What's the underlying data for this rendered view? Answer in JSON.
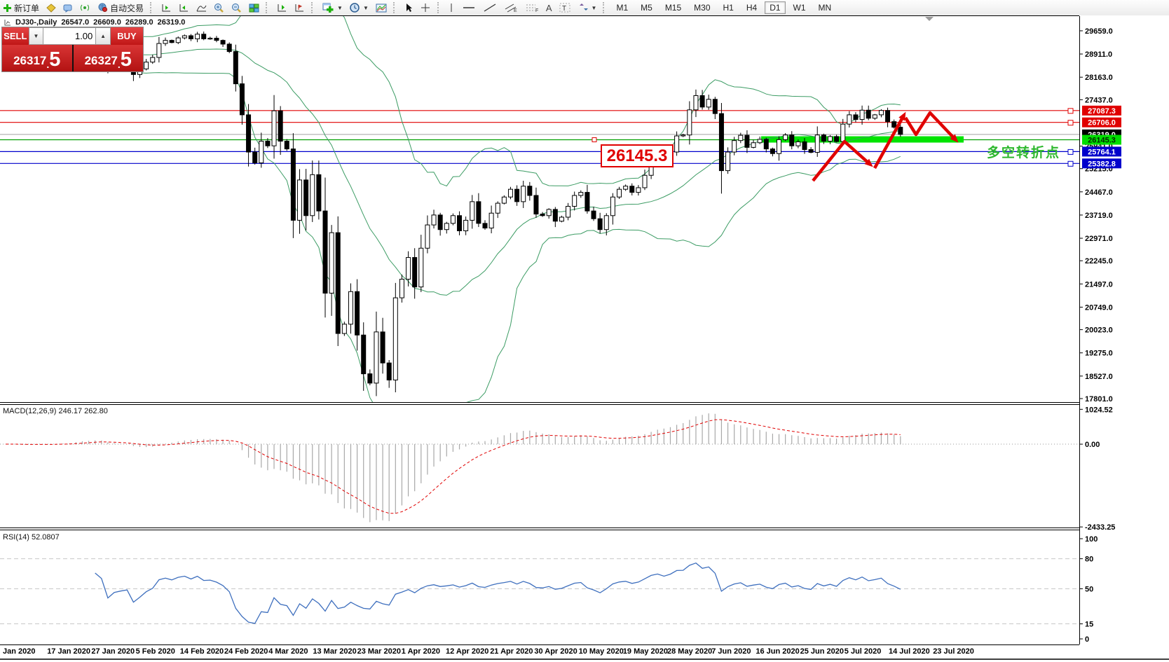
{
  "toolbar": {
    "new_order": {
      "label": "新订单"
    },
    "auto_trading": {
      "label": "自动交易"
    },
    "text_tool_a": "A",
    "timeframes": [
      "M1",
      "M5",
      "M15",
      "M30",
      "H1",
      "H4",
      "D1",
      "W1",
      "MN"
    ],
    "active_timeframe": "D1"
  },
  "chart_header": {
    "symbol_period": "DJ30-,Daily",
    "open": "26547.0",
    "high": "26609.0",
    "low": "26289.0",
    "close": "26319.0"
  },
  "order_panel": {
    "sell_label": "SELL",
    "buy_label": "BUY",
    "volume": "1.00",
    "sell_price_int": "26317",
    "sell_price_frac": "5",
    "buy_price_int": "26327",
    "buy_price_frac": "5"
  },
  "annotations": {
    "price_box": "26145.3",
    "turning_point": "多空转折点"
  },
  "indicators": {
    "macd": {
      "label": "MACD(12,26,9) 246.17 262.80",
      "y_ticks": [
        "1024.52",
        "0.00",
        "-2433.25"
      ]
    },
    "rsi": {
      "label": "RSI(14) 52.0807",
      "y_ticks": [
        "100",
        "80",
        "50",
        "15",
        "0"
      ]
    }
  },
  "chart_data": {
    "type": "candlestick",
    "title": "DJ30 Daily with Bollinger Bands, MACD(12,26,9) and RSI(14)",
    "x_labels": [
      "Jan 2020",
      "17 Jan 2020",
      "27 Jan 2020",
      "5 Feb 2020",
      "14 Feb 2020",
      "24 Feb 2020",
      "4 Mar 2020",
      "13 Mar 2020",
      "23 Mar 2020",
      "1 Apr 2020",
      "12 Apr 2020",
      "21 Apr 2020",
      "30 Apr 2020",
      "10 May 2020",
      "19 May 2020",
      "28 May 2020",
      "7 Jun 2020",
      "16 Jun 2020",
      "25 Jun 2020",
      "5 Jul 2020",
      "14 Jul 2020",
      "23 Jul 2020"
    ],
    "first_open": 28800,
    "close": [
      28850,
      28890,
      28730,
      28700,
      28750,
      28940,
      28830,
      28910,
      28950,
      29010,
      28940,
      29330,
      29370,
      29250,
      29300,
      29180,
      28540,
      28730,
      28780,
      28820,
      28250,
      28430,
      28650,
      28800,
      29250,
      29350,
      29280,
      29430,
      29500,
      29400,
      29550,
      29400,
      29420,
      29350,
      29230,
      28990,
      27950,
      26950,
      25750,
      25400,
      26100,
      25950,
      27080,
      26100,
      25850,
      23550,
      24850,
      23700,
      25020,
      23850,
      21200,
      23150,
      19900,
      20200,
      21250,
      19850,
      18600,
      18300,
      19950,
      18950,
      18400,
      21050,
      21650,
      22350,
      21400,
      22650,
      23400,
      23720,
      23250,
      23450,
      23700,
      23210,
      23550,
      24150,
      23450,
      23300,
      23780,
      24100,
      24300,
      24550,
      24150,
      24650,
      24350,
      23750,
      23700,
      23900,
      23520,
      23650,
      24000,
      24350,
      24450,
      23850,
      23600,
      23250,
      23700,
      24300,
      24550,
      24650,
      24450,
      24600,
      25000,
      25450,
      25650,
      25480,
      25750,
      26270,
      26300,
      27110,
      27570,
      27200,
      27450,
      26990,
      25150,
      25750,
      26120,
      26290,
      25900,
      26050,
      26160,
      25850,
      25700,
      26150,
      26300,
      25950,
      26080,
      25830,
      25740,
      26300,
      26100,
      26250,
      26090,
      26650,
      26950,
      26800,
      27100,
      26840,
      26950,
      27090,
      26730,
      26550,
      26319
    ],
    "ylim": [
      17710,
      30155
    ],
    "y_ticks": [
      29659.0,
      28911.0,
      28163.0,
      27437.0,
      25941.0,
      25215.0,
      24467.0,
      23719.0,
      22971.0,
      22245.0,
      21497.0,
      20749.0,
      20023.0,
      19275.0,
      18527.0,
      17801.0
    ],
    "bollinger": {
      "period": 20,
      "deviation": 2
    },
    "levels": [
      {
        "price": 27087.3,
        "color": "#e00000",
        "badge_bg": "#e00000",
        "badge_fg": "#ffffff",
        "handle": true
      },
      {
        "price": 26706.0,
        "color": "#e00000",
        "badge_bg": "#e00000",
        "badge_fg": "#ffffff",
        "handle": true
      },
      {
        "price": 26319.0,
        "color": "#b4b4b4",
        "badge_bg": "#000000",
        "badge_fg": "#ffffff",
        "handle": false
      },
      {
        "price": 26145.3,
        "color": "#00a000",
        "badge_bg": "#00dd00",
        "badge_fg": "#002800",
        "handle": false
      },
      {
        "price": 25764.1,
        "color": "#0000cc",
        "badge_bg": "#0000cc",
        "badge_fg": "#ffffff",
        "handle": true
      },
      {
        "price": 25382.8,
        "color": "#0000cc",
        "badge_bg": "#0000cc",
        "badge_fg": "#ffffff",
        "handle": true
      }
    ],
    "support_band": {
      "price": 26145.3,
      "color": "#00e400"
    },
    "macd_ylim": [
      -2450,
      1175
    ],
    "rsi_levels": [
      80,
      50,
      15
    ],
    "colors": {
      "bollinger": "#3c9c64",
      "zigzag": "#e00000",
      "macd_hist": "#a8a8a8",
      "macd_signal": "#e00000",
      "rsi_line": "#3e6fbe",
      "grid_dash": "#c8c8c8"
    }
  }
}
